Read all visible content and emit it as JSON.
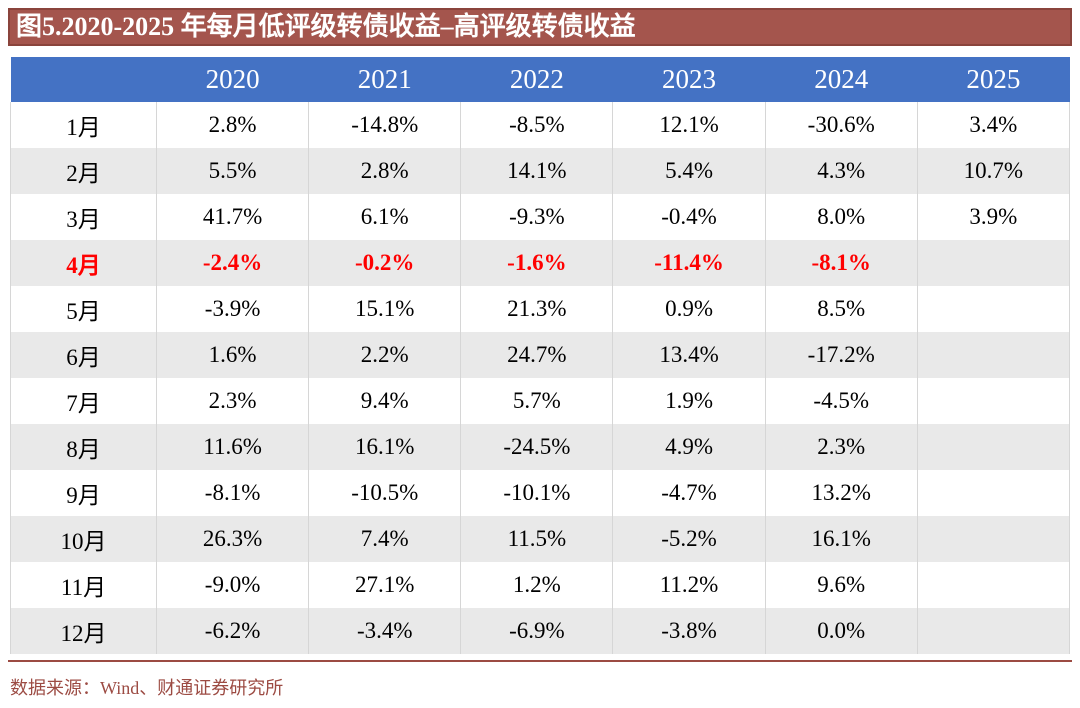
{
  "title": "图5.2020-2025 年每月低评级转债收益–高评级转债收益",
  "source": "数据来源：Wind、财通证券研究所",
  "colors": {
    "title_bg": "#A4554D",
    "title_border": "#8A443C",
    "title_text": "#FFFFFF",
    "header_bg": "#4472C4",
    "header_text": "#FFFFFF",
    "stripe_bg": "#E9E9E9",
    "highlight_text": "#FF0000",
    "body_text": "#000000",
    "cell_border": "#D6D6D6",
    "source_text": "#9C4B43",
    "rule_color": "#9C4B43"
  },
  "chart_data": {
    "type": "table",
    "title": "图5.2020-2025 年每月低评级转债收益–高评级转债收益",
    "columns": [
      "",
      "2020",
      "2021",
      "2022",
      "2023",
      "2024",
      "2025"
    ],
    "rows": [
      {
        "label": "1月",
        "highlight": false,
        "values": [
          "2.8%",
          "-14.8%",
          "-8.5%",
          "12.1%",
          "-30.6%",
          "3.4%"
        ]
      },
      {
        "label": "2月",
        "highlight": false,
        "values": [
          "5.5%",
          "2.8%",
          "14.1%",
          "5.4%",
          "4.3%",
          "10.7%"
        ]
      },
      {
        "label": "3月",
        "highlight": false,
        "values": [
          "41.7%",
          "6.1%",
          "-9.3%",
          "-0.4%",
          "8.0%",
          "3.9%"
        ]
      },
      {
        "label": "4月",
        "highlight": true,
        "values": [
          "-2.4%",
          "-0.2%",
          "-1.6%",
          "-11.4%",
          "-8.1%",
          ""
        ]
      },
      {
        "label": "5月",
        "highlight": false,
        "values": [
          "-3.9%",
          "15.1%",
          "21.3%",
          "0.9%",
          "8.5%",
          ""
        ]
      },
      {
        "label": "6月",
        "highlight": false,
        "values": [
          "1.6%",
          "2.2%",
          "24.7%",
          "13.4%",
          "-17.2%",
          ""
        ]
      },
      {
        "label": "7月",
        "highlight": false,
        "values": [
          "2.3%",
          "9.4%",
          "5.7%",
          "1.9%",
          "-4.5%",
          ""
        ]
      },
      {
        "label": "8月",
        "highlight": false,
        "values": [
          "11.6%",
          "16.1%",
          "-24.5%",
          "4.9%",
          "2.3%",
          ""
        ]
      },
      {
        "label": "9月",
        "highlight": false,
        "values": [
          "-8.1%",
          "-10.5%",
          "-10.1%",
          "-4.7%",
          "13.2%",
          ""
        ]
      },
      {
        "label": "10月",
        "highlight": false,
        "values": [
          "26.3%",
          "7.4%",
          "11.5%",
          "-5.2%",
          "16.1%",
          ""
        ]
      },
      {
        "label": "11月",
        "highlight": false,
        "values": [
          "-9.0%",
          "27.1%",
          "1.2%",
          "11.2%",
          "9.6%",
          ""
        ]
      },
      {
        "label": "12月",
        "highlight": false,
        "values": [
          "-6.2%",
          "-3.4%",
          "-6.9%",
          "-3.8%",
          "0.0%",
          ""
        ]
      }
    ]
  }
}
